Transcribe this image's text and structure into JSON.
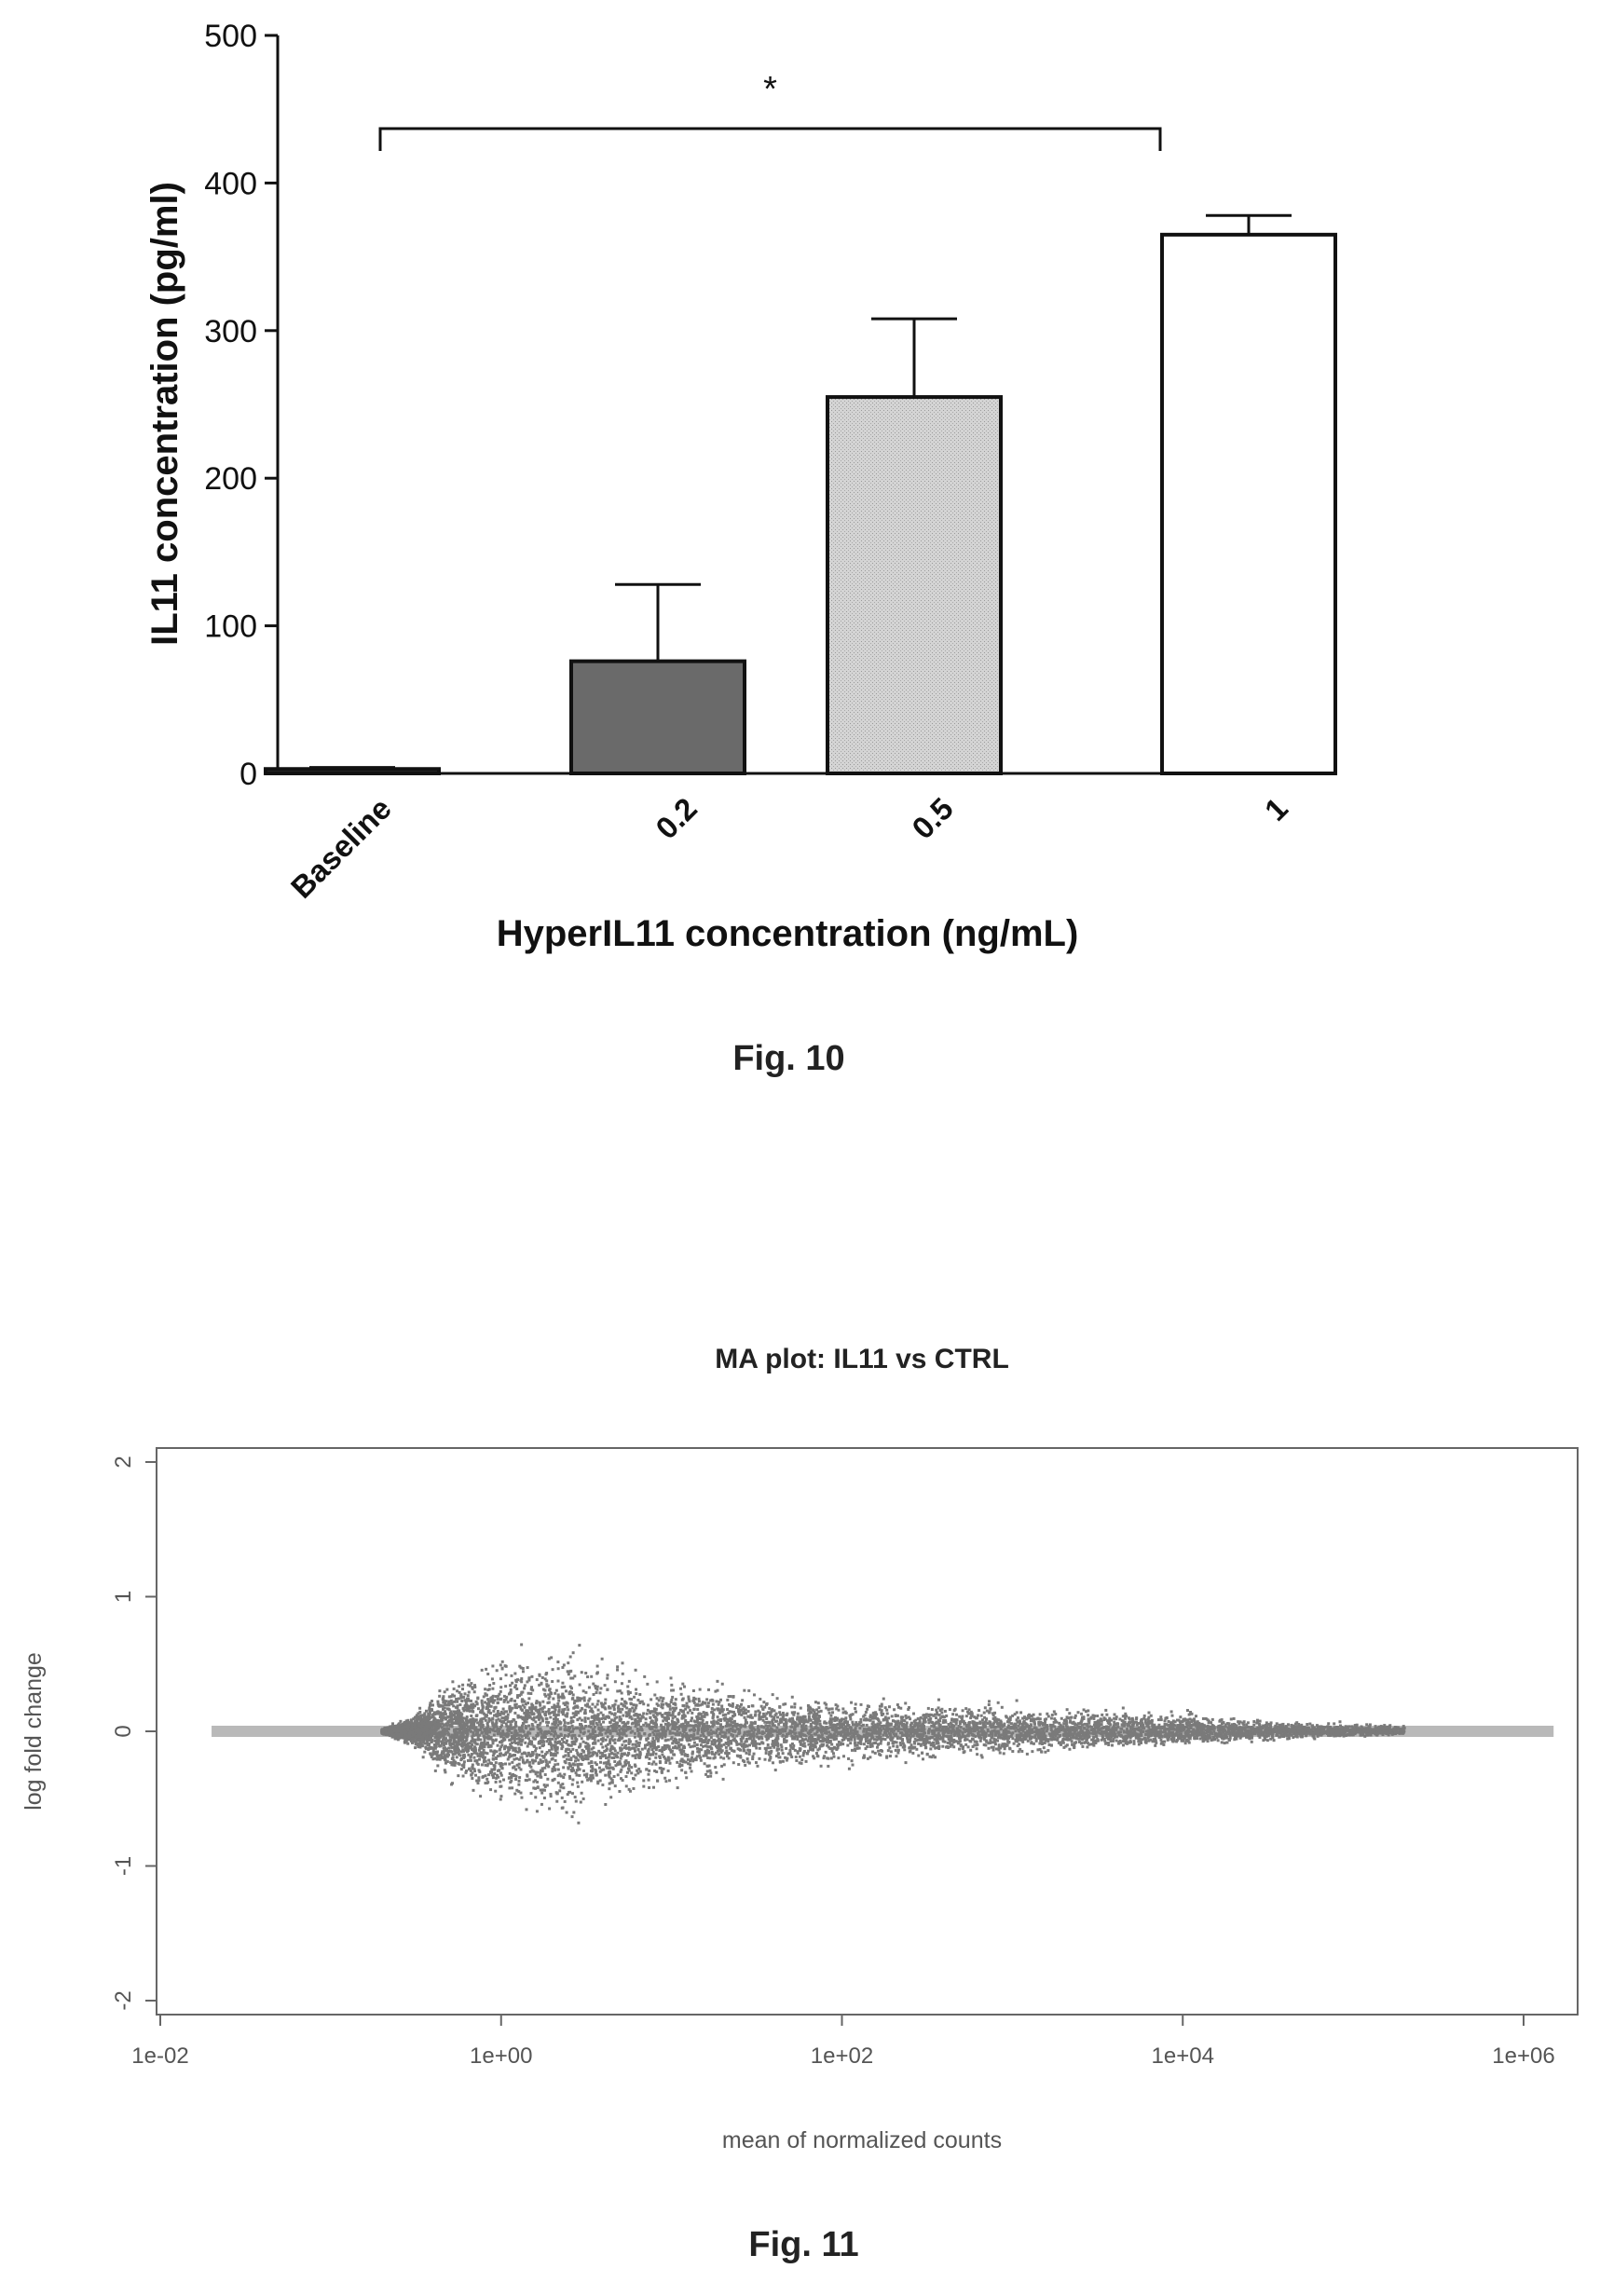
{
  "figures": [
    {
      "caption": "Fig. 10",
      "chart_data": {
        "type": "bar",
        "title": "",
        "xlabel": "HyperIL11 concentration (ng/mL)",
        "ylabel": "IL11 concentration (pg/ml)",
        "ylim": [
          0,
          500
        ],
        "yticks": [
          0,
          100,
          200,
          300,
          400,
          500
        ],
        "categories": [
          "Baseline",
          "0.2",
          "0.5",
          "1"
        ],
        "values": [
          3,
          76,
          255,
          365
        ],
        "error_plus": [
          1,
          52,
          53,
          13
        ],
        "bar_fills": [
          "#2b2b2b",
          "#6a6a6a",
          "#cfcfcf",
          "#ffffff"
        ],
        "significance": {
          "from": "Baseline",
          "to": "1",
          "label": "*"
        },
        "grid": false,
        "legend": "none"
      }
    },
    {
      "caption": "Fig. 11",
      "chart_data": {
        "type": "scatter",
        "title": "MA plot: IL11 vs CTRL",
        "xlabel": "mean of normalized counts",
        "ylabel": "log fold change",
        "xscale": "log",
        "xlim": [
          0.01,
          2000000
        ],
        "ylim": [
          -2.1,
          2.1
        ],
        "xticks": [
          "1e-02",
          "1e+00",
          "1e+02",
          "1e+04",
          "1e+06"
        ],
        "yticks": [
          "-2",
          "-1",
          "0",
          "1",
          "2"
        ],
        "point_color": "#7a7a7a",
        "cloud_envelope": {
          "x": [
            0.2,
            0.3,
            0.5,
            1.0,
            2.0,
            5.0,
            10,
            30,
            100,
            1000,
            10000,
            50000,
            200000
          ],
          "upper": [
            0.02,
            0.15,
            0.5,
            0.72,
            0.82,
            0.62,
            0.5,
            0.42,
            0.32,
            0.26,
            0.2,
            0.1,
            0.06
          ],
          "lower": [
            -0.02,
            -0.15,
            -0.5,
            -0.72,
            -0.88,
            -0.72,
            -0.55,
            -0.42,
            -0.32,
            -0.24,
            -0.15,
            -0.08,
            -0.04
          ]
        },
        "baseline_band": {
          "x": [
            0.01,
            2000000
          ],
          "y": 0,
          "color": "#b9b9b9"
        },
        "grid": false,
        "legend": "none"
      }
    }
  ]
}
